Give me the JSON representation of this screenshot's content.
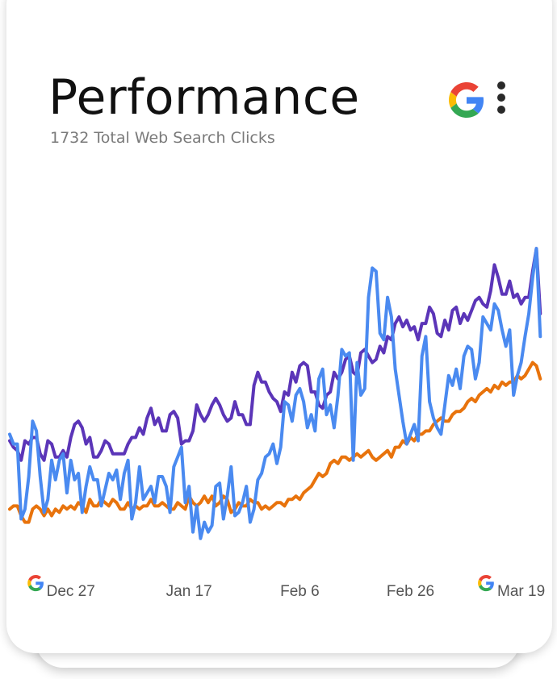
{
  "header": {
    "title": "Performance",
    "subtitle": "1732 Total Web Search Clicks"
  },
  "icons": {
    "header_logo": "google-g-icon",
    "menu": "more-vert-icon",
    "axis_markers": "google-g-icon"
  },
  "colors": {
    "purple": "#5b35b8",
    "blue": "#4a8af0",
    "orange": "#e8730c"
  },
  "chart_data": {
    "type": "line",
    "x_ticks": [
      {
        "label": "Dec 27",
        "index": 16,
        "has_marker": true
      },
      {
        "label": "Jan 17",
        "index": 47,
        "has_marker": false
      },
      {
        "label": "Feb 6",
        "index": 76,
        "has_marker": false
      },
      {
        "label": "Feb 26",
        "index": 105,
        "has_marker": false
      },
      {
        "label": "Mar 19",
        "index": 134,
        "has_marker": true
      }
    ],
    "x_range": [
      0,
      140
    ],
    "ylim": [
      0,
      100
    ],
    "grid": false,
    "legend": "none",
    "series": [
      {
        "color": "#5b35b8",
        "values": [
          36,
          34,
          33,
          30,
          36,
          35,
          37,
          37,
          32,
          30,
          36,
          35,
          31,
          31,
          33,
          31,
          37,
          41,
          42,
          40,
          35,
          37,
          31,
          31,
          33,
          36,
          35,
          32,
          32,
          32,
          32,
          35,
          37,
          37,
          40,
          38,
          43,
          46,
          41,
          43,
          39,
          39,
          44,
          45,
          43,
          35,
          36,
          36,
          39,
          47,
          44,
          42,
          44,
          47,
          49,
          47,
          44,
          42,
          43,
          48,
          44,
          44,
          41,
          41,
          53,
          57,
          54,
          54,
          51,
          49,
          48,
          45,
          51,
          50,
          57,
          54,
          59,
          60,
          59,
          51,
          51,
          47,
          46,
          50,
          51,
          57,
          55,
          57,
          61,
          62,
          57,
          56,
          63,
          64,
          62,
          60,
          61,
          65,
          63,
          68,
          67,
          72,
          74,
          71,
          73,
          70,
          71,
          67,
          72,
          72,
          77,
          75,
          69,
          68,
          73,
          70,
          76,
          77,
          72,
          75,
          73,
          76,
          79,
          80,
          78,
          77,
          82,
          90,
          86,
          81,
          81,
          85,
          80,
          81,
          78,
          80,
          80,
          88,
          95,
          75
        ]
      },
      {
        "color": "#4a8af0",
        "values": [
          38,
          35,
          35,
          12,
          15,
          25,
          42,
          39,
          25,
          14,
          18,
          30,
          24,
          30,
          32,
          20,
          30,
          24,
          26,
          14,
          22,
          28,
          24,
          24,
          16,
          21,
          26,
          24,
          27,
          18,
          26,
          30,
          12,
          17,
          28,
          18,
          20,
          22,
          17,
          25,
          25,
          22,
          14,
          28,
          31,
          34,
          17,
          22,
          8,
          16,
          6,
          11,
          8,
          10,
          22,
          23,
          12,
          19,
          28,
          13,
          14,
          17,
          22,
          11,
          15,
          24,
          26,
          31,
          32,
          35,
          29,
          34,
          48,
          47,
          42,
          50,
          52,
          48,
          40,
          44,
          39,
          55,
          58,
          44,
          47,
          40,
          50,
          64,
          62,
          63,
          30,
          60,
          50,
          52,
          80,
          89,
          88,
          69,
          67,
          80,
          74,
          58,
          50,
          42,
          35,
          38,
          41,
          36,
          62,
          68,
          48,
          43,
          40,
          38,
          47,
          56,
          53,
          58,
          52,
          62,
          65,
          64,
          55,
          60,
          74,
          72,
          70,
          78,
          76,
          70,
          65,
          70,
          50,
          56,
          60,
          68,
          75,
          86,
          95,
          68
        ]
      },
      {
        "color": "#e8730c",
        "values": [
          15,
          16,
          16,
          13,
          11,
          11,
          15,
          16,
          15,
          13,
          15,
          13,
          15,
          14,
          16,
          15,
          16,
          15,
          17,
          16,
          14,
          18,
          16,
          16,
          18,
          17,
          16,
          18,
          17,
          15,
          15,
          17,
          15,
          16,
          15,
          16,
          16,
          18,
          16,
          16,
          17,
          16,
          15,
          15,
          17,
          16,
          15,
          19,
          17,
          16,
          17,
          19,
          17,
          19,
          16,
          17,
          19,
          18,
          14,
          15,
          17,
          16,
          16,
          18,
          17,
          17,
          15,
          16,
          15,
          16,
          17,
          17,
          16,
          18,
          18,
          19,
          18,
          20,
          21,
          22,
          24,
          26,
          25,
          26,
          29,
          30,
          29,
          31,
          31,
          30,
          31,
          32,
          31,
          32,
          33,
          31,
          30,
          31,
          32,
          33,
          31,
          34,
          34,
          36,
          35,
          37,
          36,
          38,
          38,
          39,
          39,
          41,
          42,
          43,
          42,
          42,
          44,
          45,
          45,
          46,
          48,
          49,
          48,
          50,
          51,
          52,
          51,
          53,
          52,
          54,
          53,
          54,
          54,
          56,
          55,
          56,
          58,
          60,
          59,
          55
        ]
      }
    ]
  }
}
